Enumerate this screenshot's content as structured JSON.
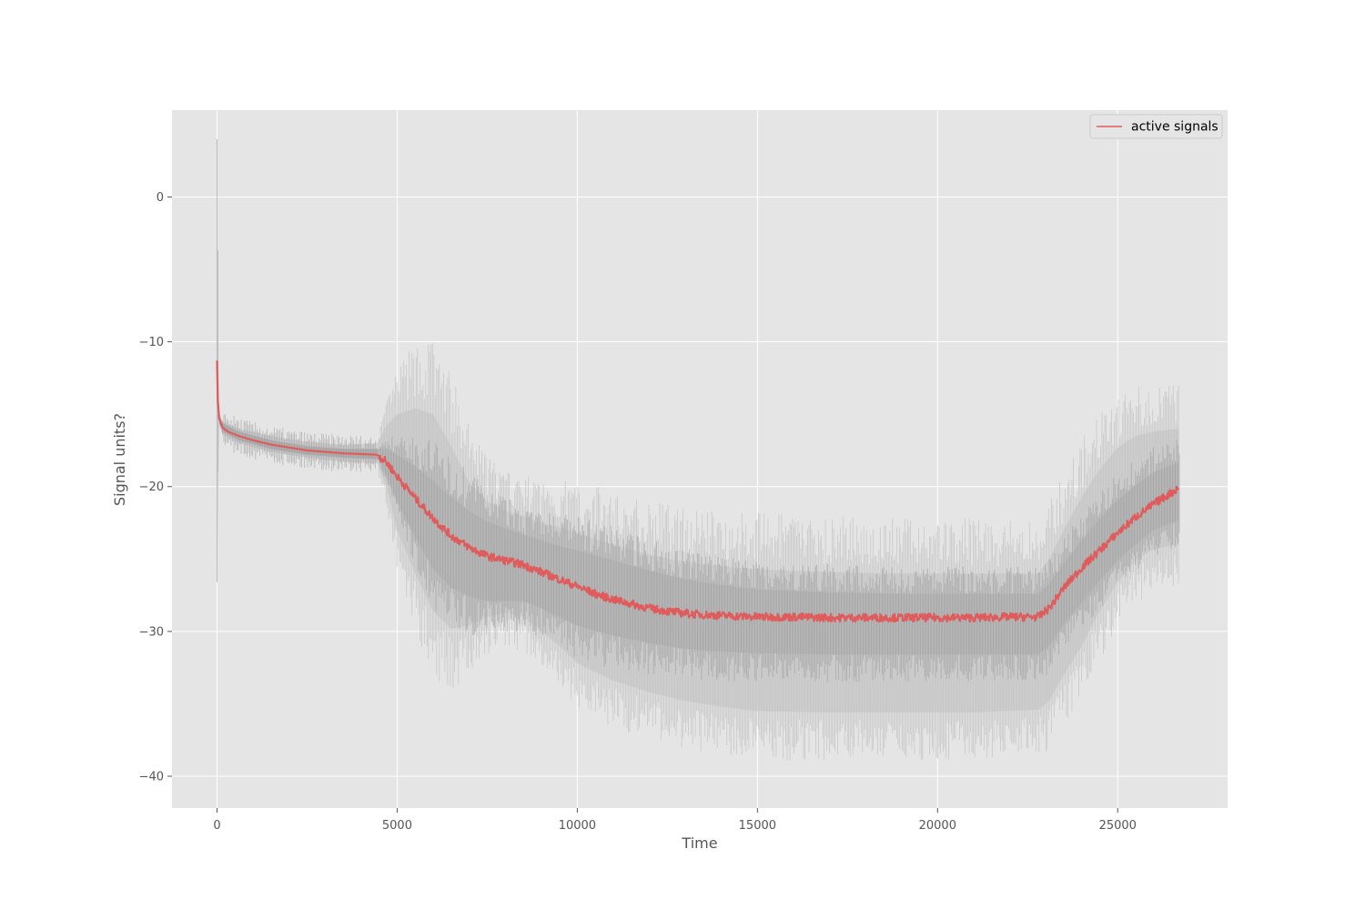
{
  "chart_data": {
    "type": "line",
    "title": "",
    "xlabel": "Time",
    "ylabel": "Signal units?",
    "xlim": [
      -1250,
      28050
    ],
    "ylim": [
      -42.2,
      6.0
    ],
    "grid": true,
    "legend_position": "top-right",
    "x_ticks": [
      0,
      5000,
      10000,
      15000,
      20000,
      25000
    ],
    "x_tick_labels": [
      "0",
      "5000",
      "10000",
      "15000",
      "20000",
      "25000"
    ],
    "y_ticks": [
      0,
      -10,
      -20,
      -30,
      -40
    ],
    "y_tick_labels": [
      "0",
      "−10",
      "−20",
      "−30",
      "−40"
    ],
    "series": [
      {
        "name": "active signals",
        "color": "#e05c5c",
        "role": "mean",
        "x": [
          0,
          20,
          60,
          150,
          300,
          600,
          1000,
          1500,
          2000,
          2500,
          3000,
          3500,
          4000,
          4450,
          4700,
          5000,
          5500,
          6000,
          6500,
          7000,
          7500,
          8000,
          8500,
          9000,
          9500,
          10000,
          10500,
          11000,
          11500,
          12000,
          12500,
          13000,
          13500,
          14000,
          15000,
          16000,
          17000,
          18000,
          19000,
          20000,
          21000,
          22000,
          22800,
          23100,
          23500,
          24000,
          24500,
          25000,
          25500,
          26000,
          26500,
          26700
        ],
        "values": [
          -11.3,
          -14.0,
          -15.3,
          -15.9,
          -16.2,
          -16.5,
          -16.8,
          -17.1,
          -17.3,
          -17.5,
          -17.6,
          -17.7,
          -17.75,
          -17.8,
          -18.3,
          -19.3,
          -20.8,
          -22.2,
          -23.4,
          -24.2,
          -24.8,
          -25.1,
          -25.4,
          -25.9,
          -26.4,
          -26.9,
          -27.4,
          -27.8,
          -28.1,
          -28.4,
          -28.6,
          -28.75,
          -28.85,
          -28.9,
          -29.0,
          -29.0,
          -29.05,
          -29.05,
          -29.05,
          -29.05,
          -29.05,
          -29.0,
          -29.0,
          -28.4,
          -27.0,
          -25.6,
          -24.4,
          -23.2,
          -22.1,
          -21.2,
          -20.4,
          -20.1
        ]
      }
    ],
    "bands": [
      {
        "role": "inner",
        "color": "#aaaaaa",
        "x": [
          0,
          60,
          150,
          600,
          1500,
          2500,
          3500,
          4450,
          4700,
          5000,
          5500,
          6000,
          6500,
          7000,
          7500,
          8000,
          8500,
          9000,
          9500,
          10000,
          11000,
          12000,
          13000,
          14000,
          15000,
          17000,
          19000,
          21000,
          22800,
          23100,
          23500,
          24000,
          24500,
          25000,
          25500,
          26000,
          26700
        ],
        "upper": [
          -11.3,
          -15.0,
          -15.6,
          -16.2,
          -16.8,
          -17.2,
          -17.4,
          -17.4,
          -17.4,
          -17.8,
          -18.6,
          -19.6,
          -20.7,
          -21.7,
          -22.4,
          -22.9,
          -23.3,
          -23.7,
          -24.1,
          -24.4,
          -25.1,
          -25.8,
          -26.4,
          -26.8,
          -27.1,
          -27.3,
          -27.4,
          -27.4,
          -27.4,
          -26.7,
          -25.3,
          -23.7,
          -22.2,
          -20.9,
          -19.9,
          -19.0,
          -18.3
        ],
        "lower": [
          -11.3,
          -15.6,
          -16.2,
          -16.8,
          -17.4,
          -17.8,
          -18.0,
          -18.1,
          -19.2,
          -21.0,
          -23.5,
          -25.7,
          -27.0,
          -27.6,
          -27.9,
          -27.9,
          -27.9,
          -28.4,
          -29.0,
          -29.6,
          -30.3,
          -30.8,
          -31.2,
          -31.4,
          -31.5,
          -31.6,
          -31.6,
          -31.6,
          -31.6,
          -31.0,
          -29.5,
          -28.0,
          -26.5,
          -25.1,
          -24.0,
          -23.0,
          -22.3
        ]
      },
      {
        "role": "outer",
        "color": "#cccccc",
        "x": [
          0,
          60,
          150,
          600,
          1500,
          2500,
          3500,
          4450,
          4700,
          5000,
          5500,
          6000,
          6500,
          7000,
          7500,
          8000,
          8500,
          9000,
          9500,
          10000,
          11000,
          12000,
          13000,
          14000,
          15000,
          17000,
          19000,
          21000,
          22800,
          23100,
          23500,
          24000,
          24500,
          25000,
          25500,
          26000,
          26700
        ],
        "upper": [
          -3.7,
          -14.9,
          -15.5,
          -16.0,
          -16.5,
          -16.9,
          -17.1,
          -17.0,
          -15.8,
          -15.0,
          -14.6,
          -15.0,
          -17.2,
          -19.7,
          -21.0,
          -21.7,
          -22.0,
          -22.5,
          -22.8,
          -23.2,
          -24.0,
          -24.7,
          -25.2,
          -25.5,
          -25.7,
          -25.9,
          -26.0,
          -26.0,
          -26.0,
          -25.0,
          -23.0,
          -20.7,
          -18.8,
          -17.3,
          -16.5,
          -16.2,
          -16.0
        ],
        "lower": [
          -26.6,
          -15.8,
          -16.4,
          -17.0,
          -17.6,
          -18.0,
          -18.3,
          -18.4,
          -20.0,
          -23.0,
          -26.0,
          -28.6,
          -29.8,
          -29.6,
          -29.0,
          -28.7,
          -29.0,
          -30.0,
          -31.0,
          -32.2,
          -33.4,
          -34.2,
          -34.8,
          -35.2,
          -35.5,
          -35.6,
          -35.6,
          -35.6,
          -35.4,
          -34.8,
          -33.0,
          -31.0,
          -28.6,
          -26.6,
          -25.1,
          -24.3,
          -24.0
        ]
      }
    ],
    "spike_traces": [
      {
        "x": 0,
        "top": 4.0,
        "bottom": -26.6
      },
      {
        "x": 25,
        "top": -3.7,
        "bottom": -19.0
      }
    ]
  }
}
